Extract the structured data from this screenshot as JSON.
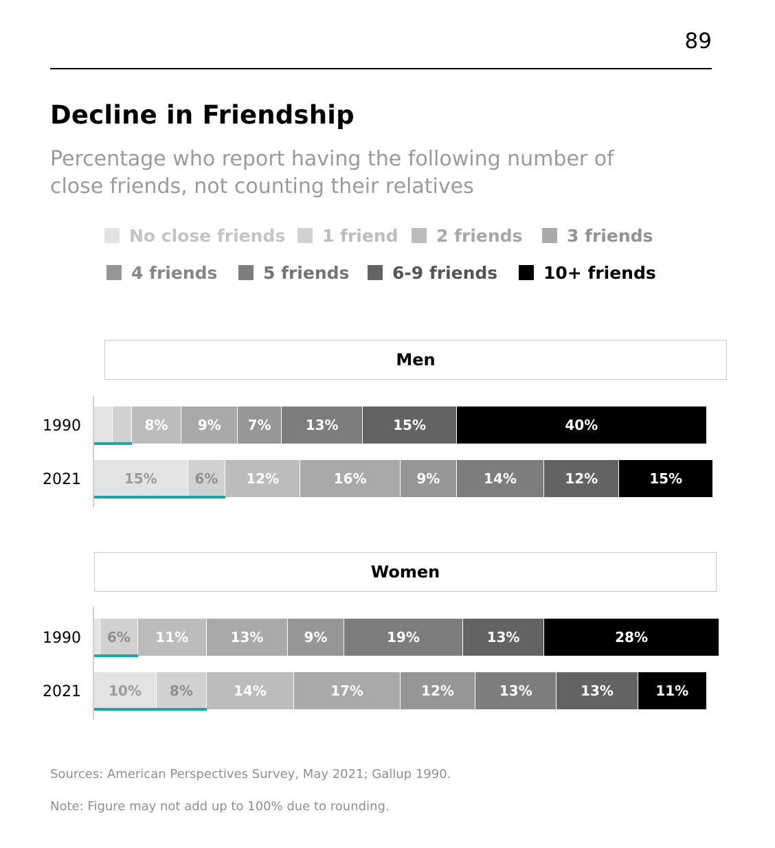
{
  "page": {
    "number": "89"
  },
  "colors": {
    "categories": [
      "#e3e3e3",
      "#d1d1d1",
      "#bcbcbc",
      "#a9a9a9",
      "#969696",
      "#7d7d7d",
      "#636363",
      "#000000"
    ],
    "category_text": [
      "#c4c4c4",
      "#bdbdbd",
      "#a8a8a8",
      "#939393",
      "#868686",
      "#747474",
      "#555555",
      "#000000"
    ],
    "accent": "#1aa6a6"
  },
  "chart_data": {
    "type": "bar",
    "stacked": true,
    "orientation": "horizontal",
    "title": "Decline in Friendship",
    "subtitle": "Percentage who report having the following number of close friends, not counting their relatives",
    "legend": [
      "No close friends",
      "1 friend",
      "2 friends",
      "3 friends",
      "4 friends",
      "5 friends",
      "6-9 friends",
      "10+ friends"
    ],
    "panels": [
      {
        "name": "Men",
        "rows": [
          {
            "year": "1990",
            "values": [
              3,
              3,
              8,
              9,
              7,
              13,
              15,
              40
            ],
            "labels": [
              "",
              "",
              "8%",
              "9%",
              "7%",
              "13%",
              "15%",
              "40%"
            ]
          },
          {
            "year": "2021",
            "values": [
              15,
              6,
              12,
              16,
              9,
              14,
              12,
              15
            ],
            "labels": [
              "15%",
              "6%",
              "12%",
              "16%",
              "9%",
              "14%",
              "12%",
              "15%"
            ]
          }
        ]
      },
      {
        "name": "Women",
        "rows": [
          {
            "year": "1990",
            "values": [
              1,
              6,
              11,
              13,
              9,
              19,
              13,
              28
            ],
            "labels": [
              "",
              "6%",
              "11%",
              "13%",
              "9%",
              "19%",
              "13%",
              "28%"
            ]
          },
          {
            "year": "2021",
            "values": [
              10,
              8,
              14,
              17,
              12,
              13,
              13,
              11
            ],
            "labels": [
              "10%",
              "8%",
              "14%",
              "17%",
              "12%",
              "13%",
              "13%",
              "11%"
            ]
          }
        ]
      }
    ]
  },
  "footer": {
    "sources": "Sources: American Perspectives Survey, May 2021; Gallup 1990.",
    "note": "Note: Figure may not add up to 100% due to rounding."
  }
}
